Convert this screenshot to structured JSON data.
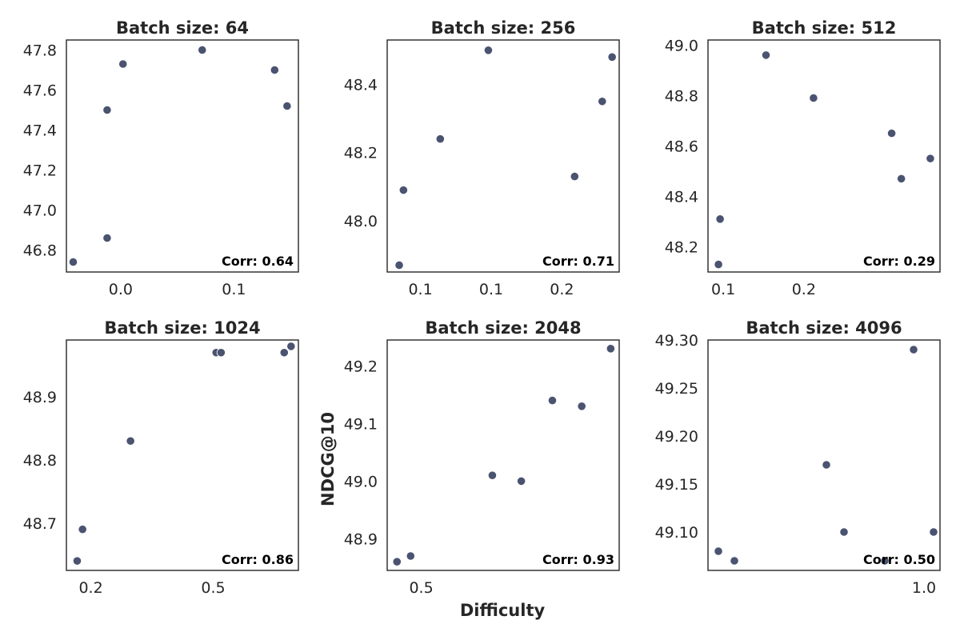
{
  "figure": {
    "xlabel": "Difficulty",
    "ylabel": "NDCG@10",
    "point_color": "#4a5370"
  },
  "chart_data": [
    {
      "type": "scatter",
      "title": "Batch size: 64",
      "annotation": "Corr: 0.64",
      "xlim": [
        -0.048,
        0.157
      ],
      "ylim": [
        46.69,
        47.85
      ],
      "xticks": [
        0.0,
        0.1
      ],
      "xtick_labels": [
        "0.0",
        "0.1"
      ],
      "yticks": [
        46.8,
        47.0,
        47.2,
        47.4,
        47.6,
        47.8
      ],
      "ytick_labels": [
        "46.8",
        "47.0",
        "47.2",
        "47.4",
        "47.6",
        "47.8"
      ],
      "x": [
        -0.042,
        -0.012,
        -0.012,
        0.002,
        0.072,
        0.136,
        0.147
      ],
      "y": [
        46.74,
        46.86,
        47.5,
        47.73,
        47.8,
        47.7,
        47.52
      ]
    },
    {
      "type": "scatter",
      "title": "Batch size: 256",
      "annotation": "Corr: 0.71",
      "xlim": [
        0.0765,
        0.2405
      ],
      "ylim": [
        47.85,
        48.53
      ],
      "xticks": [
        0.1,
        0.15,
        0.2
      ],
      "xtick_labels": [
        "0.1",
        "0.1",
        "0.2"
      ],
      "yticks": [
        48.0,
        48.2,
        48.4
      ],
      "ytick_labels": [
        "48.0",
        "48.2",
        "48.4"
      ],
      "x": [
        0.085,
        0.088,
        0.114,
        0.148,
        0.209,
        0.2285,
        0.2355
      ],
      "y": [
        47.87,
        48.09,
        48.24,
        48.5,
        48.13,
        48.35,
        48.48
      ]
    },
    {
      "type": "scatter",
      "title": "Batch size: 512",
      "annotation": "Corr: 0.29",
      "xlim": [
        0.081,
        0.369
      ],
      "ylim": [
        48.1,
        49.02
      ],
      "xticks": [
        0.1,
        0.2
      ],
      "xtick_labels": [
        "0.1",
        "0.2"
      ],
      "yticks": [
        48.2,
        48.4,
        48.6,
        48.8,
        49.0
      ],
      "ytick_labels": [
        "48.2",
        "48.4",
        "48.6",
        "48.8",
        "49.0"
      ],
      "x": [
        0.094,
        0.096,
        0.153,
        0.212,
        0.309,
        0.321,
        0.357
      ],
      "y": [
        48.13,
        48.31,
        48.96,
        48.79,
        48.65,
        48.47,
        48.55
      ]
    },
    {
      "type": "scatter",
      "title": "Batch size: 1024",
      "annotation": "Corr: 0.86",
      "xlim": [
        0.15,
        0.624
      ],
      "ylim": [
        48.625,
        48.99
      ],
      "xticks": [
        0.2,
        0.45
      ],
      "xtick_labels": [
        "0.2",
        "0.5"
      ],
      "yticks": [
        48.7,
        48.8,
        48.9
      ],
      "ytick_labels": [
        "48.7",
        "48.8",
        "48.9"
      ],
      "x": [
        0.172,
        0.183,
        0.281,
        0.456,
        0.466,
        0.595,
        0.609
      ],
      "y": [
        48.64,
        48.69,
        48.83,
        48.97,
        48.97,
        48.97,
        48.98
      ]
    },
    {
      "type": "scatter",
      "title": "Batch size: 2048",
      "annotation": "Corr: 0.93",
      "xlim": [
        0.42,
        0.965
      ],
      "ylim": [
        48.845,
        49.245
      ],
      "xticks": [
        0.5
      ],
      "xtick_labels": [
        "0.5"
      ],
      "yticks": [
        48.9,
        49.0,
        49.1,
        49.2
      ],
      "ytick_labels": [
        "48.9",
        "49.0",
        "49.1",
        "49.2"
      ],
      "x": [
        0.443,
        0.475,
        0.667,
        0.735,
        0.808,
        0.877,
        0.945
      ],
      "y": [
        48.86,
        48.87,
        49.01,
        49.0,
        49.14,
        49.13,
        49.23
      ]
    },
    {
      "type": "scatter",
      "title": "Batch size: 4096",
      "annotation": "Corr: 0.50",
      "xlim": [
        0.73,
        1.02
      ],
      "ylim": [
        49.06,
        49.3
      ],
      "xticks": [
        1.0
      ],
      "xtick_labels": [
        "1.0"
      ],
      "yticks": [
        49.1,
        49.15,
        49.2,
        49.25,
        49.3
      ],
      "ytick_labels": [
        "49.10",
        "49.15",
        "49.20",
        "49.25",
        "49.30"
      ],
      "x": [
        0.743,
        0.763,
        0.878,
        0.9,
        0.951,
        0.987,
        1.012
      ],
      "y": [
        49.08,
        49.07,
        49.17,
        49.1,
        49.07,
        49.29,
        49.1
      ]
    }
  ]
}
